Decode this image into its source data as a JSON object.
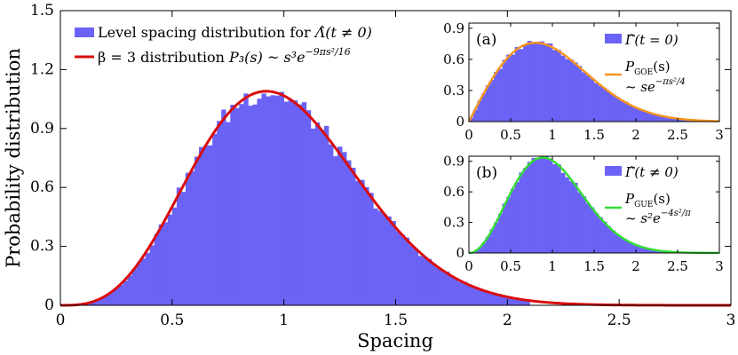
{
  "chart_data": [
    {
      "id": "main",
      "type": "bar",
      "subtype": "histogram-with-curve",
      "title": "",
      "xlabel": "Spacing",
      "ylabel": "Probability distribution",
      "xlim": [
        0,
        3
      ],
      "ylim": [
        0,
        1.5
      ],
      "xticks": [
        0,
        0.5,
        1,
        1.5,
        2,
        2.5,
        3
      ],
      "xtick_labels": [
        "0",
        "0.5",
        "1",
        "1.5",
        "2",
        "2.5",
        "3"
      ],
      "yticks": [
        0,
        0.3,
        0.6,
        0.9,
        1.2,
        1.5
      ],
      "ytick_labels": [
        "0",
        "0.3",
        "0.6",
        "0.9",
        "1.2",
        "1.5"
      ],
      "grid": false,
      "legend_position": "top-left",
      "series": [
        {
          "name": "Level spacing distribution for Λ̂(t ≠ 0)",
          "kind": "histogram",
          "color": "#6b63f5",
          "bin_width": 0.02,
          "dist": "beta3",
          "range": [
            0,
            2.1
          ]
        },
        {
          "name": "β = 3 distribution P₃(s) ~ s³e^(−9πs²/16)",
          "kind": "curve",
          "color": "#d90d0d",
          "dist": "beta3"
        }
      ],
      "legend": {
        "hist_label": "Level spacing distribution for ",
        "hist_math": "Λ̂(t ≠ 0)",
        "curve_label": "β = 3 distribution ",
        "curve_math": "P₃(s) ~ s³",
        "curve_exp": "e",
        "curve_exp_sup": "−9πs²/16"
      }
    },
    {
      "id": "inset_a",
      "type": "bar",
      "subtype": "histogram-with-curve",
      "panel_label": "(a)",
      "xlim": [
        0,
        3
      ],
      "ylim": [
        0,
        0.95
      ],
      "xticks": [
        0,
        0.5,
        1,
        1.5,
        2,
        2.5,
        3
      ],
      "xtick_labels": [
        "0",
        "0.5",
        "1",
        "1.5",
        "2",
        "2.5",
        "3"
      ],
      "yticks": [
        0,
        0.3,
        0.6,
        0.9
      ],
      "ytick_labels": [
        "0",
        "0.3",
        "0.6",
        "0.9"
      ],
      "legend_position": "top-right",
      "series": [
        {
          "name": "Γ̂(t = 0)",
          "kind": "histogram",
          "color": "#6b63f5",
          "bin_width": 0.05,
          "dist": "goe",
          "range": [
            0,
            3
          ]
        },
        {
          "name": "P_GOE(s) ~ se^(−πs²/4)",
          "kind": "curve",
          "color": "#f7941d",
          "dist": "goe"
        }
      ],
      "legend": {
        "hist_label": "Γ̂(t = 0)",
        "curve_P": "P",
        "curve_sub": "GOE",
        "curve_arg": "(s)",
        "curve_line2": "~ se",
        "curve_exp": "−πs²/4"
      }
    },
    {
      "id": "inset_b",
      "type": "bar",
      "subtype": "histogram-with-curve",
      "panel_label": "(b)",
      "xlim": [
        0,
        3
      ],
      "ylim": [
        0,
        0.95
      ],
      "xticks": [
        0,
        0.5,
        1,
        1.5,
        2,
        2.5,
        3
      ],
      "xtick_labels": [
        "0",
        "0.5",
        "1",
        "1.5",
        "2",
        "2.5",
        "3"
      ],
      "yticks": [
        0,
        0.3,
        0.6,
        0.9
      ],
      "ytick_labels": [
        "0",
        "0.3",
        "0.6",
        "0.9"
      ],
      "legend_position": "top-right",
      "series": [
        {
          "name": "Γ̂(t ≠ 0)",
          "kind": "histogram",
          "color": "#6b63f5",
          "bin_width": 0.05,
          "dist": "gue",
          "range": [
            0,
            3
          ]
        },
        {
          "name": "P_GUE(s) ~ s²e^(−4s²/π)",
          "kind": "curve",
          "color": "#33dd33",
          "dist": "gue"
        }
      ],
      "legend": {
        "hist_label": "Γ̂(t ≠ 0)",
        "curve_P": "P",
        "curve_sub": "GUE",
        "curve_arg": "(s)",
        "curve_line2": "~ s²e",
        "curve_exp": "−4s²/π"
      }
    }
  ]
}
